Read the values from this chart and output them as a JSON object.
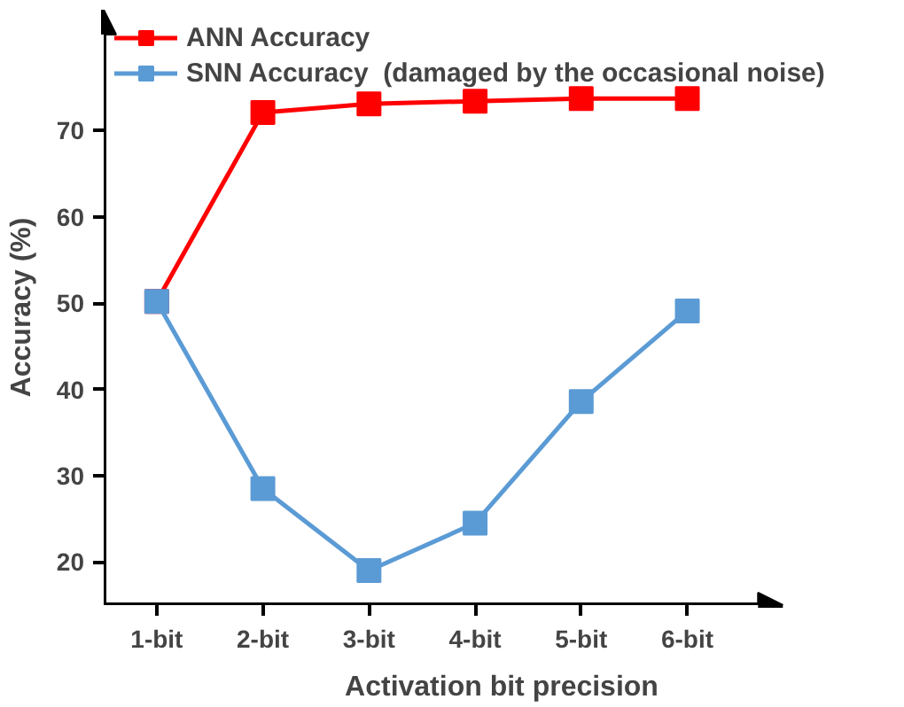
{
  "chart_data": {
    "type": "line",
    "xlabel": "Activation bit precision",
    "ylabel": "Accuracy (%)",
    "categories": [
      "1-bit",
      "2-bit",
      "3-bit",
      "4-bit",
      "5-bit",
      "6-bit"
    ],
    "series": [
      {
        "name": "ANN Accuracy",
        "color": "#ff0000",
        "values": [
          50.2,
          72.1,
          73.1,
          73.4,
          73.7,
          73.7
        ]
      },
      {
        "name": "SNN Accuracy  (damaged by the occasional noise)",
        "color": "#5b9bd5",
        "values": [
          50.2,
          28.5,
          19.0,
          24.5,
          38.6,
          49.1
        ]
      }
    ],
    "ylim": [
      15,
      84
    ],
    "yticks": [
      20,
      30,
      40,
      50,
      60,
      70
    ],
    "grid": false,
    "legend": "top left",
    "marker": "square",
    "line_style": "solid"
  }
}
